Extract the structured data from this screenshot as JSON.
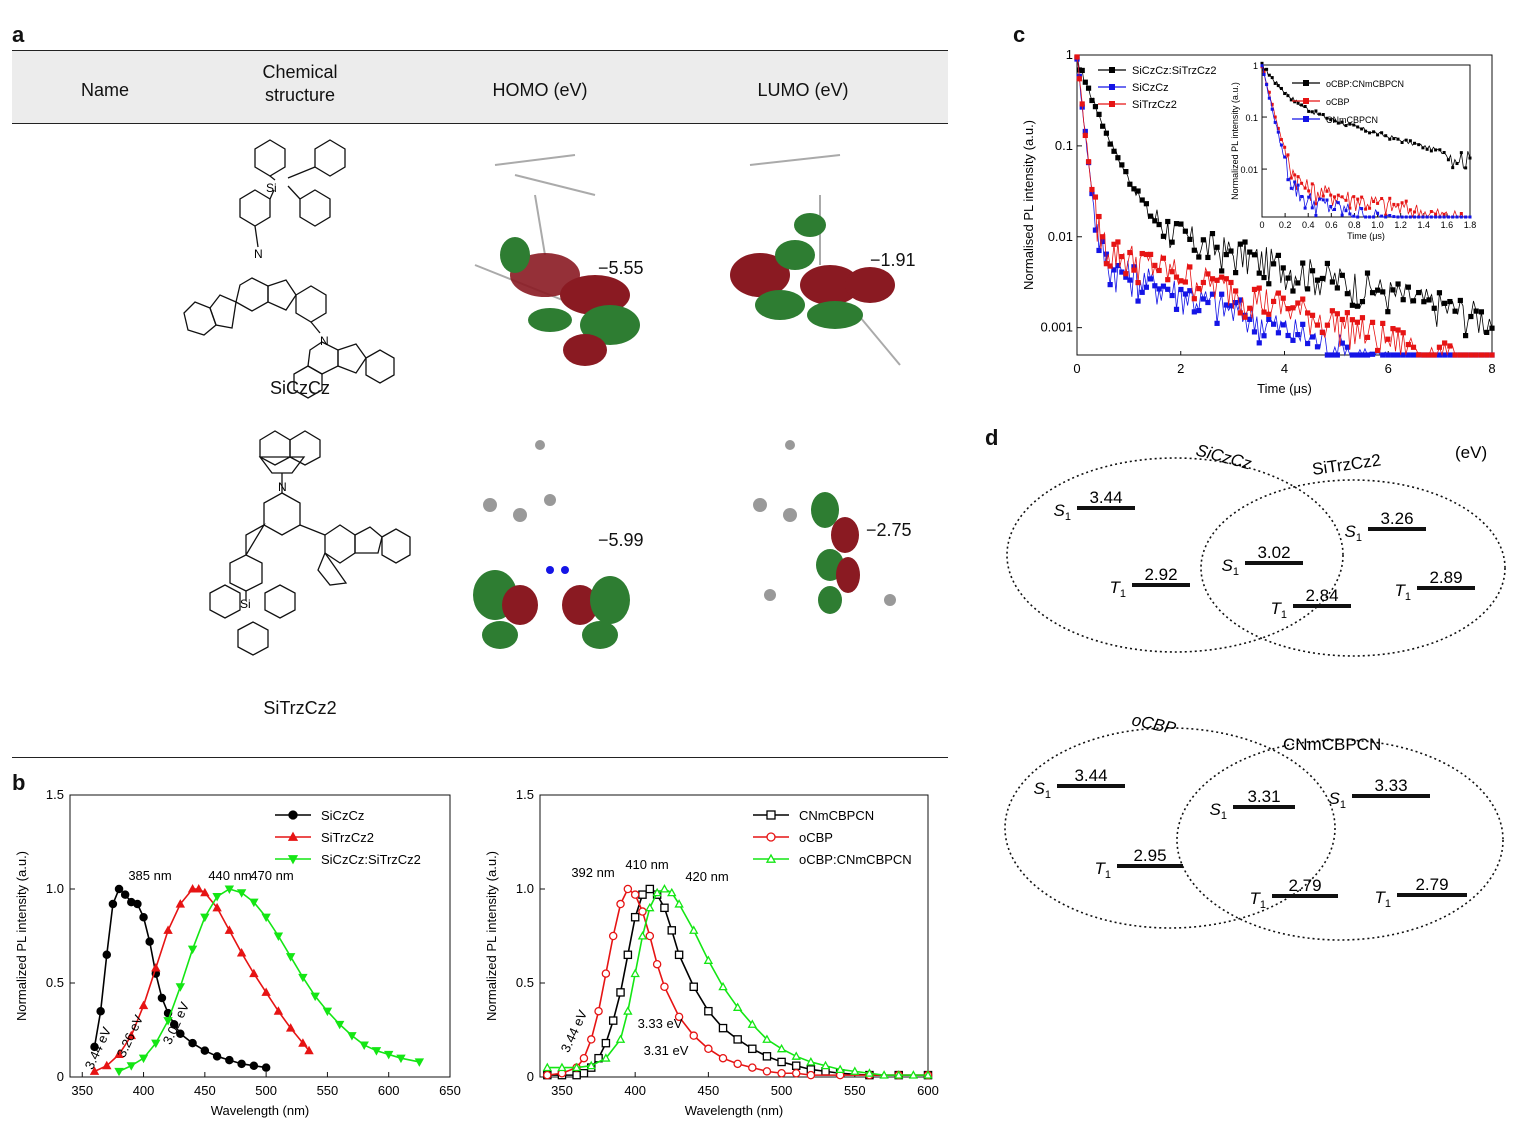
{
  "panel_labels": {
    "a": "a",
    "b": "b",
    "c": "c",
    "d": "d"
  },
  "table": {
    "headers": {
      "name": "Name",
      "structure_line1": "Chemical",
      "structure_line2": "structure",
      "homo": "HOMO (eV)",
      "lumo": "LUMO (eV)"
    },
    "rows": [
      {
        "name": "SiCzCz",
        "homo": "−5.55",
        "lumo": "−1.91"
      },
      {
        "name": "SiTrzCz2",
        "homo": "−5.99",
        "lumo": "−2.75"
      }
    ]
  },
  "structure_atoms": {
    "si": "Si",
    "n": "N"
  },
  "colors": {
    "black": "#000000",
    "blue": "#1414e6",
    "red": "#e61414",
    "green": "#14e614",
    "orb_red": "#8a1a22",
    "orb_green": "#2e7d32"
  },
  "chart_data": [
    {
      "id": "b-left",
      "type": "line",
      "xlabel": "Wavelength (nm)",
      "ylabel": "Normalized PL intensity (a.u.)",
      "xlim": [
        340,
        650
      ],
      "ylim": [
        0,
        1.5
      ],
      "xticks": [
        350,
        400,
        450,
        500,
        550,
        600,
        650
      ],
      "yticks": [
        0,
        0.5,
        1.0,
        1.5
      ],
      "ytick_labels": [
        "0",
        "0.5",
        "1.0",
        "1.5"
      ],
      "legend_position": "top-right",
      "series": [
        {
          "name": "SiCzCz",
          "color": "#000000",
          "marker": "circle",
          "x": [
            360,
            365,
            370,
            375,
            380,
            385,
            390,
            395,
            400,
            405,
            410,
            415,
            420,
            425,
            430,
            440,
            450,
            460,
            470,
            480,
            490,
            500
          ],
          "y": [
            0.16,
            0.35,
            0.65,
            0.92,
            1.0,
            0.97,
            0.93,
            0.92,
            0.85,
            0.72,
            0.55,
            0.42,
            0.34,
            0.28,
            0.23,
            0.18,
            0.14,
            0.11,
            0.09,
            0.07,
            0.06,
            0.05
          ]
        },
        {
          "name": "SiTrzCz2",
          "color": "#e61414",
          "marker": "triangle-up",
          "x": [
            360,
            370,
            380,
            390,
            400,
            410,
            420,
            430,
            440,
            445,
            450,
            460,
            470,
            480,
            490,
            500,
            510,
            520,
            530,
            535
          ],
          "y": [
            0.03,
            0.06,
            0.12,
            0.22,
            0.38,
            0.58,
            0.78,
            0.92,
            1.0,
            1.0,
            0.98,
            0.9,
            0.78,
            0.66,
            0.55,
            0.45,
            0.35,
            0.26,
            0.18,
            0.14
          ]
        },
        {
          "name": "SiCzCz:SiTrzCz2",
          "color": "#14e614",
          "marker": "triangle-down",
          "x": [
            380,
            390,
            400,
            410,
            420,
            430,
            440,
            450,
            460,
            470,
            480,
            490,
            500,
            510,
            520,
            530,
            540,
            550,
            560,
            570,
            580,
            590,
            600,
            610,
            625
          ],
          "y": [
            0.03,
            0.06,
            0.1,
            0.18,
            0.3,
            0.48,
            0.68,
            0.85,
            0.96,
            1.0,
            0.98,
            0.93,
            0.85,
            0.75,
            0.64,
            0.53,
            0.43,
            0.35,
            0.28,
            0.22,
            0.17,
            0.14,
            0.12,
            0.1,
            0.08
          ]
        }
      ],
      "annotations": [
        "385 nm",
        "440 nm",
        "470 nm",
        "3.44 eV",
        "3.26 eV",
        "3.02 eV"
      ]
    },
    {
      "id": "b-right",
      "type": "line",
      "xlabel": "Wavelength (nm)",
      "ylabel": "Normalized PL intensity (a.u.)",
      "xlim": [
        335,
        600
      ],
      "ylim": [
        0,
        1.5
      ],
      "xticks": [
        350,
        400,
        450,
        500,
        550,
        600
      ],
      "yticks": [
        0,
        0.5,
        1.0,
        1.5
      ],
      "ytick_labels": [
        "0",
        "0.5",
        "1.0",
        "1.5"
      ],
      "legend_position": "top-right",
      "series": [
        {
          "name": "CNmCBPCN",
          "color": "#000000",
          "marker": "square-open",
          "x": [
            340,
            350,
            360,
            365,
            370,
            375,
            380,
            385,
            390,
            395,
            400,
            405,
            410,
            415,
            420,
            425,
            430,
            440,
            450,
            460,
            470,
            480,
            490,
            500,
            510,
            520,
            530,
            540,
            560,
            580,
            600
          ],
          "y": [
            0.01,
            0.01,
            0.01,
            0.02,
            0.05,
            0.1,
            0.18,
            0.3,
            0.45,
            0.65,
            0.85,
            0.97,
            1.0,
            0.97,
            0.9,
            0.78,
            0.65,
            0.48,
            0.35,
            0.26,
            0.2,
            0.15,
            0.11,
            0.08,
            0.06,
            0.04,
            0.03,
            0.02,
            0.01,
            0.01,
            0.01
          ]
        },
        {
          "name": "oCBP",
          "color": "#e61414",
          "marker": "circle-open",
          "x": [
            340,
            350,
            360,
            365,
            370,
            375,
            380,
            385,
            390,
            395,
            400,
            405,
            410,
            415,
            420,
            430,
            440,
            450,
            460,
            470,
            480,
            490,
            500,
            510,
            520,
            540,
            560,
            580,
            600
          ],
          "y": [
            0.01,
            0.02,
            0.05,
            0.1,
            0.2,
            0.35,
            0.55,
            0.75,
            0.92,
            1.0,
            0.97,
            0.88,
            0.75,
            0.6,
            0.48,
            0.32,
            0.22,
            0.15,
            0.1,
            0.07,
            0.05,
            0.03,
            0.02,
            0.02,
            0.01,
            0.01,
            0.01,
            0.01,
            0.01
          ]
        },
        {
          "name": "oCBP:CNmCBPCN",
          "color": "#14e614",
          "marker": "triangle-open",
          "x": [
            340,
            350,
            360,
            370,
            380,
            390,
            395,
            400,
            405,
            410,
            415,
            420,
            425,
            430,
            440,
            450,
            460,
            470,
            480,
            490,
            500,
            510,
            520,
            530,
            540,
            550,
            560,
            570,
            580,
            590,
            600
          ],
          "y": [
            0.05,
            0.05,
            0.05,
            0.06,
            0.1,
            0.2,
            0.35,
            0.55,
            0.75,
            0.9,
            0.98,
            1.0,
            0.98,
            0.92,
            0.78,
            0.62,
            0.48,
            0.37,
            0.28,
            0.2,
            0.15,
            0.11,
            0.08,
            0.06,
            0.04,
            0.03,
            0.02,
            0.01,
            0.01,
            0.01,
            0.01
          ]
        }
      ],
      "annotations": [
        "392 nm",
        "410 nm",
        "420 nm",
        "3.44 eV",
        "3.33 eV",
        "3.31 eV"
      ]
    },
    {
      "id": "c-main",
      "type": "scatter",
      "xlabel": "Time (μs)",
      "ylabel": "Normalised PL intensity (a.u.)",
      "xlim": [
        0,
        8
      ],
      "ylim_log": [
        0.0005,
        1
      ],
      "yscale": "log",
      "xticks": [
        0,
        2,
        4,
        6,
        8
      ],
      "yticks": [
        0.001,
        0.01,
        0.1,
        1
      ],
      "ytick_labels": [
        "0.001",
        "0.01",
        "0.1",
        "1"
      ],
      "legend_position": "top-left",
      "series": [
        {
          "name": "SiCzCz:SiTrzCz2",
          "color": "#000000",
          "marker": "square",
          "tau_fast": 0.3,
          "a_fast": 0.85,
          "tau_slow": 3.0,
          "a_slow": 0.018
        },
        {
          "name": "SiCzCz",
          "color": "#1414e6",
          "marker": "square",
          "tau_fast": 0.08,
          "a_fast": 0.97,
          "tau_slow": 2.2,
          "a_slow": 0.006
        },
        {
          "name": "SiTrzCz2",
          "color": "#e61414",
          "marker": "square",
          "tau_fast": 0.08,
          "a_fast": 0.97,
          "tau_slow": 2.4,
          "a_slow": 0.009
        }
      ]
    },
    {
      "id": "c-inset",
      "type": "scatter",
      "xlabel": "Time (μs)",
      "ylabel": "Normalized PL intensity (a.u.)",
      "xlim": [
        0,
        1.8
      ],
      "ylim_log": [
        0.0012,
        1
      ],
      "yscale": "log",
      "xticks": [
        0,
        0.2,
        0.4,
        0.6,
        0.8,
        1.0,
        1.2,
        1.4,
        1.6,
        1.8
      ],
      "xtick_labels": [
        "0",
        "0.2",
        "0.4",
        "0.6",
        "0.8",
        "1.0",
        "1.2",
        "1.4",
        "1.6",
        "1.8"
      ],
      "yticks": [
        0.01,
        0.1,
        1
      ],
      "ytick_labels": [
        "0.01",
        "0.1",
        "1"
      ],
      "legend_position": "top-right",
      "series": [
        {
          "name": "oCBP:CNmCBPCN",
          "color": "#000000",
          "marker": "square",
          "tau_fast": 0.12,
          "a_fast": 0.8,
          "tau_slow": 0.7,
          "a_slow": 0.2
        },
        {
          "name": "oCBP",
          "color": "#e61414",
          "marker": "square",
          "tau_fast": 0.05,
          "a_fast": 0.99,
          "tau_slow": 1.0,
          "a_slow": 0.006
        },
        {
          "name": "CNmCBPCN",
          "color": "#1414e6",
          "marker": "square",
          "tau_fast": 0.045,
          "a_fast": 0.995,
          "tau_slow": 0.8,
          "a_slow": 0.004
        }
      ]
    }
  ],
  "energy_diagrams": {
    "unit": "(eV)",
    "top": {
      "left_name": "SiCzCz",
      "right_name": "SiTrzCz2",
      "levels": [
        {
          "state": "S",
          "sub": "1",
          "value": "3.44"
        },
        {
          "state": "T",
          "sub": "1",
          "value": "2.92"
        },
        {
          "state": "S",
          "sub": "1",
          "value": "3.02"
        },
        {
          "state": "T",
          "sub": "1",
          "value": "2.84"
        },
        {
          "state": "S",
          "sub": "1",
          "value": "3.26"
        },
        {
          "state": "T",
          "sub": "1",
          "value": "2.89"
        }
      ]
    },
    "bottom": {
      "left_name": "oCBP",
      "right_name": "CNmCBPCN",
      "levels": [
        {
          "state": "S",
          "sub": "1",
          "value": "3.44"
        },
        {
          "state": "T",
          "sub": "1",
          "value": "2.95"
        },
        {
          "state": "S",
          "sub": "1",
          "value": "3.31"
        },
        {
          "state": "T",
          "sub": "1",
          "value": "2.79"
        },
        {
          "state": "S",
          "sub": "1",
          "value": "3.33"
        },
        {
          "state": "T",
          "sub": "1",
          "value": "2.79"
        }
      ]
    }
  }
}
